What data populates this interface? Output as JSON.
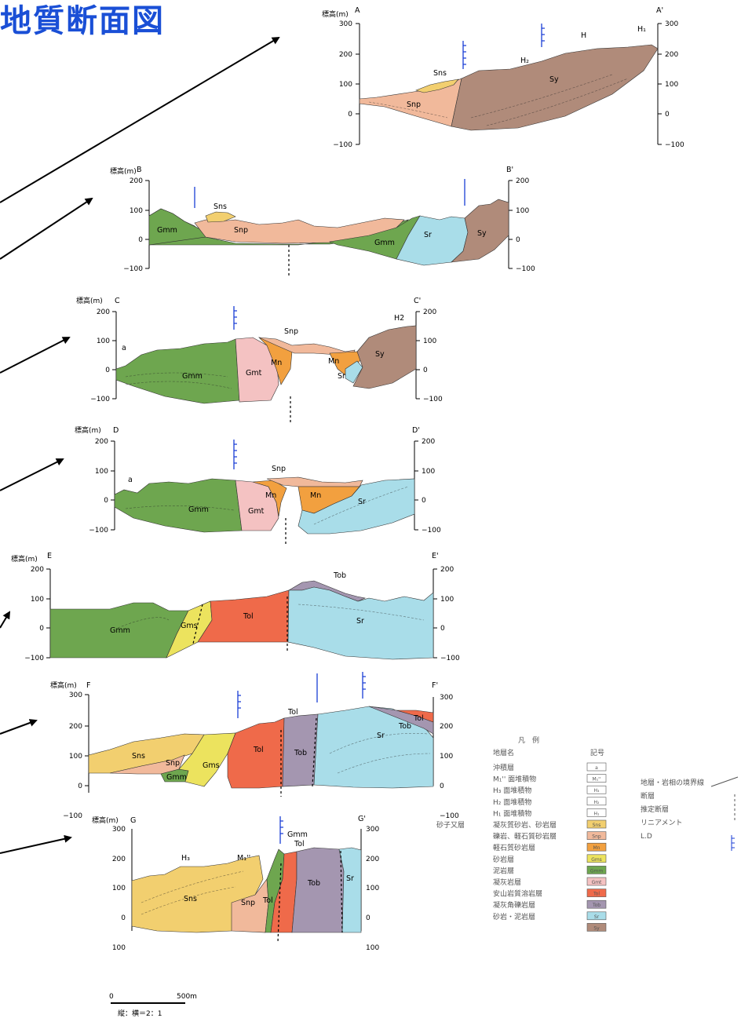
{
  "title": "地質断面図",
  "unit_label": "標高(m)",
  "sections": [
    {
      "id": "A",
      "start": "A",
      "end": "A'",
      "ticks": [
        "300",
        "200",
        "100",
        "0",
        "−100"
      ],
      "labels": [
        "Sns",
        "Snp",
        "Sy",
        "H₂",
        "H₁"
      ]
    },
    {
      "id": "B",
      "start": "B",
      "end": "B'",
      "ticks": [
        "200",
        "100",
        "0",
        "−100"
      ],
      "labels": [
        "Sns",
        "Gmm",
        "Snp",
        "Gmm",
        "Sr",
        "Sy"
      ]
    },
    {
      "id": "C",
      "start": "C",
      "end": "C'",
      "ticks": [
        "200",
        "100",
        "0",
        "−100"
      ],
      "labels": [
        "a",
        "Gmm",
        "Gmt",
        "Mn",
        "Snp",
        "Mn",
        "Sr",
        "Sy",
        "H2"
      ]
    },
    {
      "id": "D",
      "start": "D",
      "end": "D'",
      "ticks": [
        "200",
        "100",
        "0",
        "−100"
      ],
      "labels": [
        "a",
        "Gmm",
        "Gmt",
        "Mn",
        "Snp",
        "Mn",
        "Sr"
      ]
    },
    {
      "id": "E",
      "start": "E",
      "end": "E'",
      "ticks": [
        "200",
        "100",
        "0",
        "−100"
      ],
      "labels": [
        "Gmm",
        "Gms",
        "Tol",
        "Tob",
        "Sr"
      ]
    },
    {
      "id": "F",
      "start": "F",
      "end": "F'",
      "ticks": [
        "300",
        "200",
        "100",
        "0",
        "−100"
      ],
      "labels": [
        "Sns",
        "Snp",
        "Gmm",
        "Gms",
        "Tol",
        "Tob",
        "Sr",
        "Tol",
        "Tob",
        "Tol"
      ]
    },
    {
      "id": "G",
      "start": "G",
      "end": "G'",
      "ticks": [
        "300",
        "200",
        "100",
        "0",
        "100"
      ],
      "labels": [
        "H₃",
        "M₁''",
        "Gmm",
        "Tol",
        "Sns",
        "Snp",
        "Tol",
        "Tob",
        "Sr"
      ]
    }
  ],
  "scale": {
    "label": "500m",
    "zero": "0",
    "ratio": "縦：横＝2：1"
  },
  "legend": {
    "title": "凡　例",
    "col_name": "地層名",
    "col_symbol": "記号",
    "rows": [
      {
        "group": "",
        "name": "沖積層",
        "symbol": "a",
        "color": "#ffffff"
      },
      {
        "group": "",
        "name": "M₁'' 面堆積物",
        "symbol": "M₁''",
        "color": "#ffffff"
      },
      {
        "group": "",
        "name": "H₃ 面堆積物",
        "symbol": "H₃",
        "color": "#ffffff"
      },
      {
        "group": "",
        "name": "H₂ 面堆積物",
        "symbol": "H₂",
        "color": "#ffffff"
      },
      {
        "group": "",
        "name": "H₁ 面堆積物",
        "symbol": "H₁",
        "color": "#ffffff"
      },
      {
        "group": "砂子又層",
        "name": "凝灰質砂岩、砂岩層",
        "symbol": "Sns",
        "color": "#f2cf6f"
      },
      {
        "group": "",
        "name": "礫岩、軽石質砂岩層",
        "symbol": "Snp",
        "color": "#f1b99b"
      },
      {
        "group": "",
        "name": "軽石質砂岩層",
        "symbol": "Mn",
        "color": "#f2a03f"
      },
      {
        "group": "",
        "name": "砂岩層",
        "symbol": "Gms",
        "color": "#ece35e"
      },
      {
        "group": "",
        "name": "泥岩層",
        "symbol": "Gmm",
        "color": "#6ea64f"
      },
      {
        "group": "",
        "name": "凝灰岩層",
        "symbol": "Gmt",
        "color": "#f4c2c2"
      },
      {
        "group": "",
        "name": "安山岩質溶岩層",
        "symbol": "Tol",
        "color": "#ef6a4a"
      },
      {
        "group": "",
        "name": "凝灰角礫岩層",
        "symbol": "Tob",
        "color": "#a496b0"
      },
      {
        "group": "",
        "name": "砂岩・泥岩層",
        "symbol": "Sr",
        "color": "#a9dde9"
      },
      {
        "group": "",
        "name": "",
        "symbol": "Sy",
        "color": "#b08b7a"
      }
    ],
    "sym_rows": [
      {
        "name": "地層・岩相の境界線"
      },
      {
        "name": "断層"
      },
      {
        "name": "推定断層"
      },
      {
        "name": "リニアメント"
      },
      {
        "name": "L.D"
      }
    ]
  }
}
